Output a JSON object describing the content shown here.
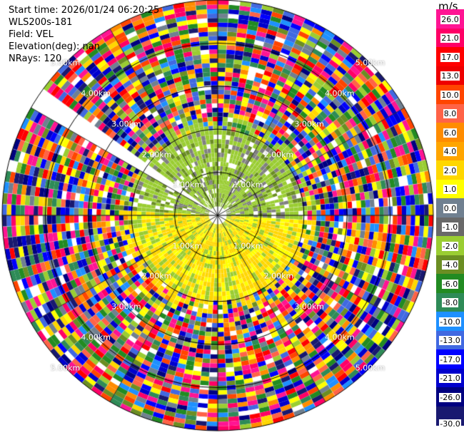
{
  "info": {
    "start_time": "Start time: 2026/01/24 06:20:25",
    "instrument": "WLS200s-181",
    "field": "Field: VEL",
    "elevation": "Elevation(deg): nan",
    "nrays": "NRays: 120"
  },
  "ring_labels": [
    "1.00km",
    "2.00km",
    "3.00km",
    "4.00km",
    "5.00km"
  ],
  "colorbar": {
    "unit": "m/s",
    "ticks": [
      "26.0",
      "21.0",
      "17.0",
      "13.0",
      "10.0",
      "8.0",
      "6.0",
      "4.0",
      "2.0",
      "1.0",
      "0.0",
      "-1.0",
      "-2.0",
      "-4.0",
      "-6.0",
      "-8.0",
      "-10.0",
      "-13.0",
      "-17.0",
      "-21.0",
      "-26.0",
      "-30.0"
    ],
    "colors": [
      "#ff1493",
      "#ff0066",
      "#ff0000",
      "#ee0000",
      "#ff4500",
      "#ff6347",
      "#ff8c00",
      "#ffa500",
      "#ffd700",
      "#ffff00",
      "#708090",
      "#696969",
      "#9acd32",
      "#6b8e23",
      "#228b22",
      "#2e8b57",
      "#1e90ff",
      "#4169e1",
      "#0000ff",
      "#0000cd",
      "#000080",
      "#191970"
    ]
  }
}
